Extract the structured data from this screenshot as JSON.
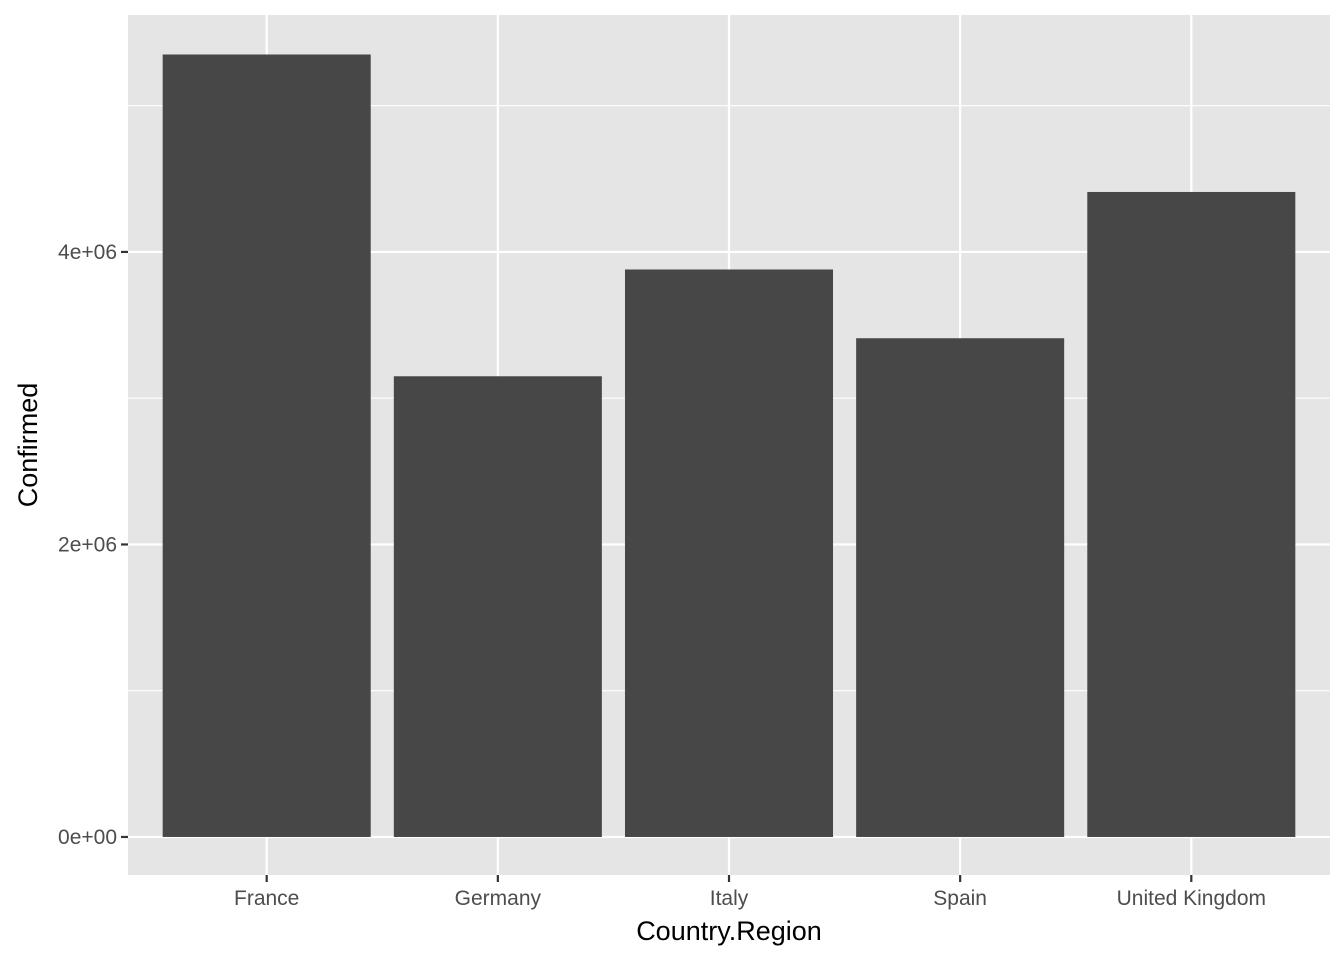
{
  "chart_data": {
    "type": "bar",
    "categories": [
      "France",
      "Germany",
      "Italy",
      "Spain",
      "United Kingdom"
    ],
    "values": [
      5350000,
      3150000,
      3880000,
      3410000,
      4410000
    ],
    "xlabel": "Country.Region",
    "ylabel": "Confirmed",
    "ylim": [
      -260000,
      5620000
    ],
    "yticks": [
      {
        "value": 0,
        "label": "0e+00"
      },
      {
        "value": 2000000,
        "label": "2e+06"
      },
      {
        "value": 4000000,
        "label": "4e+06"
      }
    ],
    "minor_yticks": [
      1000000,
      3000000,
      5000000
    ],
    "grid": true,
    "colors": {
      "bar": "#474747",
      "panel": "#e5e5e5",
      "grid": "#ffffff",
      "tick": "#333333"
    }
  }
}
